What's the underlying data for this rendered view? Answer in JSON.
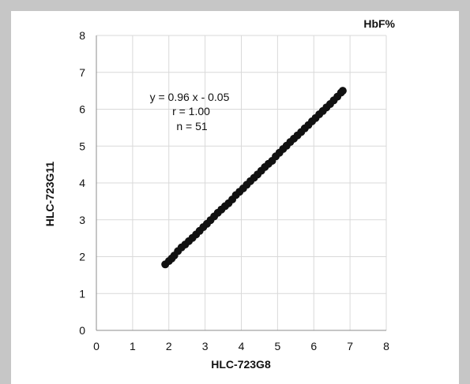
{
  "chart_data": {
    "type": "scatter",
    "title": "HbF%",
    "xlabel": "HLC-723G8",
    "ylabel": "HLC-723G11",
    "xlim": [
      0,
      8
    ],
    "ylim": [
      0,
      8
    ],
    "x_ticks": [
      "0",
      "1",
      "2",
      "3",
      "4",
      "5",
      "6",
      "7",
      "8"
    ],
    "y_ticks": [
      "0",
      "1",
      "2",
      "3",
      "4",
      "5",
      "6",
      "7",
      "8"
    ],
    "grid": true,
    "legend": "none",
    "annotations": [
      "y = 0.96 x - 0.05",
      "r = 1.00",
      "n = 51"
    ],
    "series": [
      {
        "color": "#111111",
        "marker": "circle",
        "points": [
          [
            1.9,
            1.79
          ],
          [
            2.0,
            1.88
          ],
          [
            2.08,
            1.95
          ],
          [
            2.15,
            2.03
          ],
          [
            2.25,
            2.15
          ],
          [
            2.35,
            2.25
          ],
          [
            2.45,
            2.33
          ],
          [
            2.55,
            2.42
          ],
          [
            2.65,
            2.51
          ],
          [
            2.75,
            2.6
          ],
          [
            2.85,
            2.7
          ],
          [
            2.95,
            2.8
          ],
          [
            3.05,
            2.89
          ],
          [
            3.15,
            2.99
          ],
          [
            3.25,
            3.09
          ],
          [
            3.35,
            3.19
          ],
          [
            3.45,
            3.28
          ],
          [
            3.55,
            3.37
          ],
          [
            3.65,
            3.45
          ],
          [
            3.75,
            3.55
          ],
          [
            3.85,
            3.67
          ],
          [
            3.95,
            3.76
          ],
          [
            4.05,
            3.85
          ],
          [
            4.15,
            3.95
          ],
          [
            4.25,
            4.05
          ],
          [
            4.35,
            4.14
          ],
          [
            4.45,
            4.23
          ],
          [
            4.55,
            4.33
          ],
          [
            4.65,
            4.43
          ],
          [
            4.75,
            4.52
          ],
          [
            4.85,
            4.6
          ],
          [
            4.95,
            4.72
          ],
          [
            5.05,
            4.82
          ],
          [
            5.15,
            4.92
          ],
          [
            5.25,
            5.01
          ],
          [
            5.35,
            5.11
          ],
          [
            5.45,
            5.2
          ],
          [
            5.55,
            5.29
          ],
          [
            5.65,
            5.38
          ],
          [
            5.75,
            5.48
          ],
          [
            5.85,
            5.57
          ],
          [
            5.95,
            5.67
          ],
          [
            6.05,
            5.76
          ],
          [
            6.15,
            5.86
          ],
          [
            6.25,
            5.95
          ],
          [
            6.35,
            6.05
          ],
          [
            6.45,
            6.14
          ],
          [
            6.55,
            6.24
          ],
          [
            6.65,
            6.34
          ],
          [
            6.75,
            6.45
          ],
          [
            6.8,
            6.5
          ]
        ]
      }
    ]
  }
}
